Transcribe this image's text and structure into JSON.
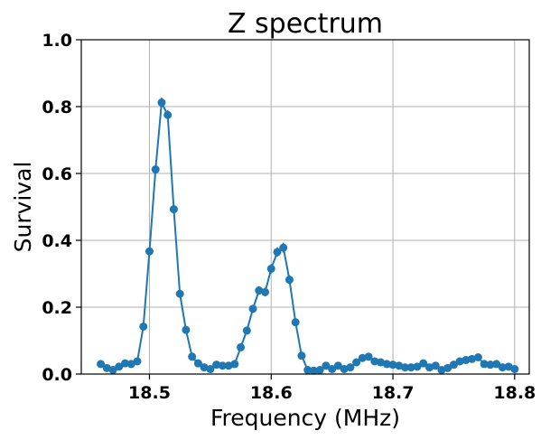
{
  "chart_data": {
    "type": "line",
    "title": "Z spectrum",
    "xlabel": "Frequency (MHz)",
    "ylabel": "Survival",
    "xlim": [
      18.444,
      18.812
    ],
    "ylim": [
      0.0,
      1.0
    ],
    "xticks": [
      18.5,
      18.6,
      18.7,
      18.8
    ],
    "xtick_labels": [
      "18.5",
      "18.6",
      "18.7",
      "18.8"
    ],
    "yticks": [
      0.0,
      0.2,
      0.4,
      0.6,
      0.8,
      1.0
    ],
    "ytick_labels": [
      "0.0",
      "0.2",
      "0.4",
      "0.6",
      "0.8",
      "1.0"
    ],
    "grid": true,
    "color": "#1f77b4",
    "markers": true,
    "error_bars": true,
    "series": [
      {
        "x": [
          18.46,
          18.465,
          18.47,
          18.475,
          18.48,
          18.485,
          18.49,
          18.495,
          18.5,
          18.505,
          18.51,
          18.515,
          18.52,
          18.525,
          18.53,
          18.535,
          18.54,
          18.545,
          18.55,
          18.555,
          18.56,
          18.565,
          18.57,
          18.575,
          18.58,
          18.585,
          18.59,
          18.595,
          18.6,
          18.605,
          18.61,
          18.615,
          18.62,
          18.625,
          18.63,
          18.635,
          18.64,
          18.645,
          18.65,
          18.655,
          18.66,
          18.665,
          18.67,
          18.675,
          18.68,
          18.685,
          18.69,
          18.695,
          18.7,
          18.705,
          18.71,
          18.715,
          18.72,
          18.725,
          18.73,
          18.735,
          18.74,
          18.745,
          18.75,
          18.755,
          18.76,
          18.765,
          18.77,
          18.775,
          18.78,
          18.785,
          18.79,
          18.795,
          18.8
        ],
        "y": [
          0.03,
          0.018,
          0.012,
          0.022,
          0.032,
          0.03,
          0.038,
          0.142,
          0.367,
          0.612,
          0.812,
          0.775,
          0.493,
          0.24,
          0.132,
          0.052,
          0.032,
          0.02,
          0.015,
          0.028,
          0.025,
          0.025,
          0.03,
          0.08,
          0.13,
          0.195,
          0.25,
          0.245,
          0.315,
          0.365,
          0.378,
          0.282,
          0.155,
          0.055,
          0.012,
          0.01,
          0.012,
          0.025,
          0.015,
          0.025,
          0.015,
          0.02,
          0.035,
          0.048,
          0.052,
          0.038,
          0.035,
          0.03,
          0.028,
          0.025,
          0.02,
          0.02,
          0.022,
          0.032,
          0.02,
          0.025,
          0.012,
          0.018,
          0.028,
          0.038,
          0.042,
          0.045,
          0.05,
          0.03,
          0.028,
          0.03,
          0.02,
          0.022,
          0.015
        ],
        "err": [
          0.006,
          0.005,
          0.005,
          0.005,
          0.006,
          0.006,
          0.006,
          0.01,
          0.012,
          0.014,
          0.015,
          0.015,
          0.014,
          0.012,
          0.01,
          0.007,
          0.006,
          0.005,
          0.005,
          0.006,
          0.006,
          0.006,
          0.006,
          0.009,
          0.011,
          0.012,
          0.013,
          0.013,
          0.014,
          0.014,
          0.015,
          0.014,
          0.011,
          0.007,
          0.004,
          0.004,
          0.004,
          0.005,
          0.005,
          0.005,
          0.005,
          0.005,
          0.006,
          0.007,
          0.007,
          0.006,
          0.006,
          0.006,
          0.006,
          0.005,
          0.005,
          0.005,
          0.005,
          0.006,
          0.005,
          0.005,
          0.004,
          0.005,
          0.006,
          0.006,
          0.007,
          0.007,
          0.007,
          0.006,
          0.006,
          0.006,
          0.005,
          0.005,
          0.005
        ]
      }
    ]
  }
}
